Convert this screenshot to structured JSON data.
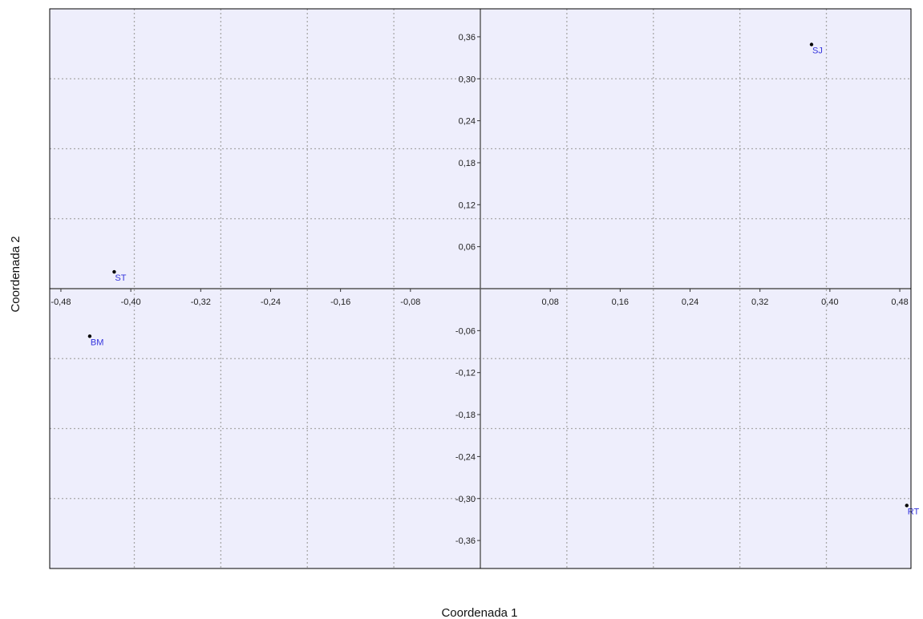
{
  "chart_data": {
    "type": "scatter",
    "xlabel": "Coordenada 1",
    "ylabel": "Coordenada 2",
    "xlim": [
      -0.4928,
      0.4928
    ],
    "ylim": [
      -0.4,
      0.4
    ],
    "x_ticks": [
      -0.48,
      -0.4,
      -0.32,
      -0.24,
      -0.16,
      -0.08,
      0.08,
      0.16,
      0.24,
      0.32,
      0.4,
      0.48
    ],
    "x_tick_labels": [
      "-0,48",
      "-0,40",
      "-0,32",
      "-0,24",
      "-0,16",
      "-0,08",
      "0,08",
      "0,16",
      "0,24",
      "0,32",
      "0,40",
      "0,48"
    ],
    "y_ticks": [
      0.36,
      0.3,
      0.24,
      0.18,
      0.12,
      0.06,
      -0.06,
      -0.12,
      -0.18,
      -0.24,
      -0.3,
      -0.36
    ],
    "y_tick_labels": [
      "0,36",
      "0,30",
      "0,24",
      "0,18",
      "0,12",
      "0,06",
      "-0,06",
      "-0,12",
      "-0,18",
      "-0,24",
      "-0,30",
      "-0,36"
    ],
    "x_gridlines": [
      -0.396,
      -0.297,
      -0.198,
      -0.099,
      0.099,
      0.198,
      0.297,
      0.396
    ],
    "y_gridlines": [
      0.3,
      0.2,
      0.1,
      -0.1,
      -0.2,
      -0.3
    ],
    "grid": true,
    "points": [
      {
        "label": "SJ",
        "x": 0.379,
        "y": 0.349
      },
      {
        "label": "ST",
        "x": -0.419,
        "y": 0.024
      },
      {
        "label": "BM",
        "x": -0.447,
        "y": -0.068
      },
      {
        "label": "RT",
        "x": 0.488,
        "y": -0.31
      }
    ]
  },
  "colors": {
    "plot_background": "#eeeefc",
    "frame": "#000000",
    "gridline": "#a8a8a8",
    "axis_line": "#555555",
    "point": "#000000",
    "point_label": "#3434dd"
  }
}
